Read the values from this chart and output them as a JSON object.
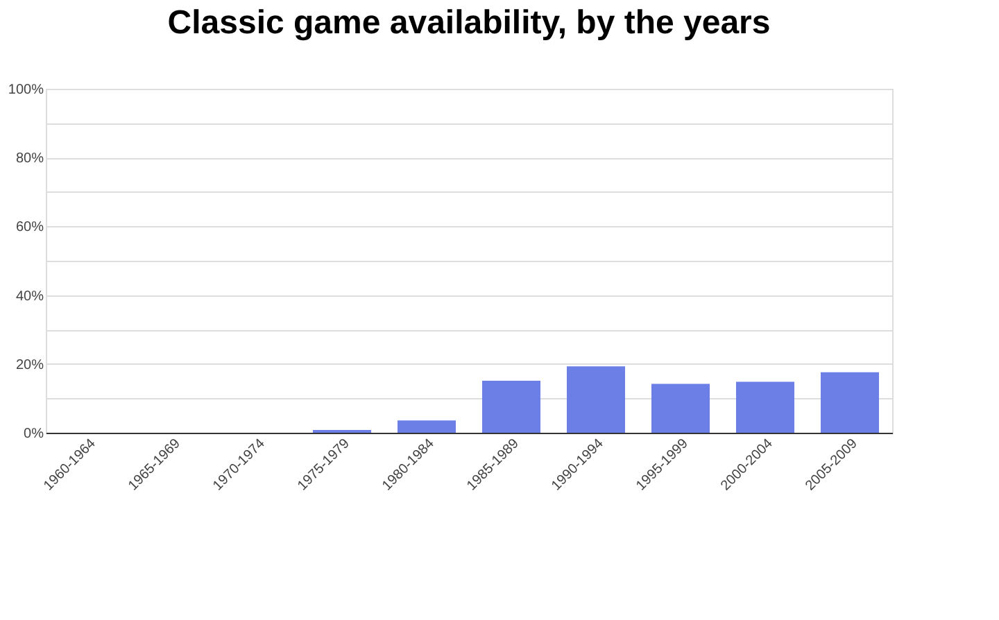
{
  "chart_data": {
    "type": "bar",
    "title": "Classic game availability, by the years",
    "categories": [
      "1960-1964",
      "1965-1969",
      "1970-1974",
      "1975-1979",
      "1980-1984",
      "1985-1989",
      "1990-1994",
      "1995-1999",
      "2000-2004",
      "2005-2009"
    ],
    "values": [
      0,
      0,
      0,
      0.8,
      3.6,
      15.1,
      19.3,
      14.2,
      14.8,
      17.6
    ],
    "color": "#6b7fe6",
    "ylim": [
      0,
      100
    ],
    "yticks": [
      {
        "value": 0,
        "label": "0%"
      },
      {
        "value": 10,
        "label": null
      },
      {
        "value": 20,
        "label": "20%"
      },
      {
        "value": 30,
        "label": null
      },
      {
        "value": 40,
        "label": "40%"
      },
      {
        "value": 50,
        "label": null
      },
      {
        "value": 60,
        "label": "60%"
      },
      {
        "value": 70,
        "label": null
      },
      {
        "value": 80,
        "label": "80%"
      },
      {
        "value": 90,
        "label": null
      },
      {
        "value": 100,
        "label": "100%"
      }
    ],
    "grid": "y"
  }
}
